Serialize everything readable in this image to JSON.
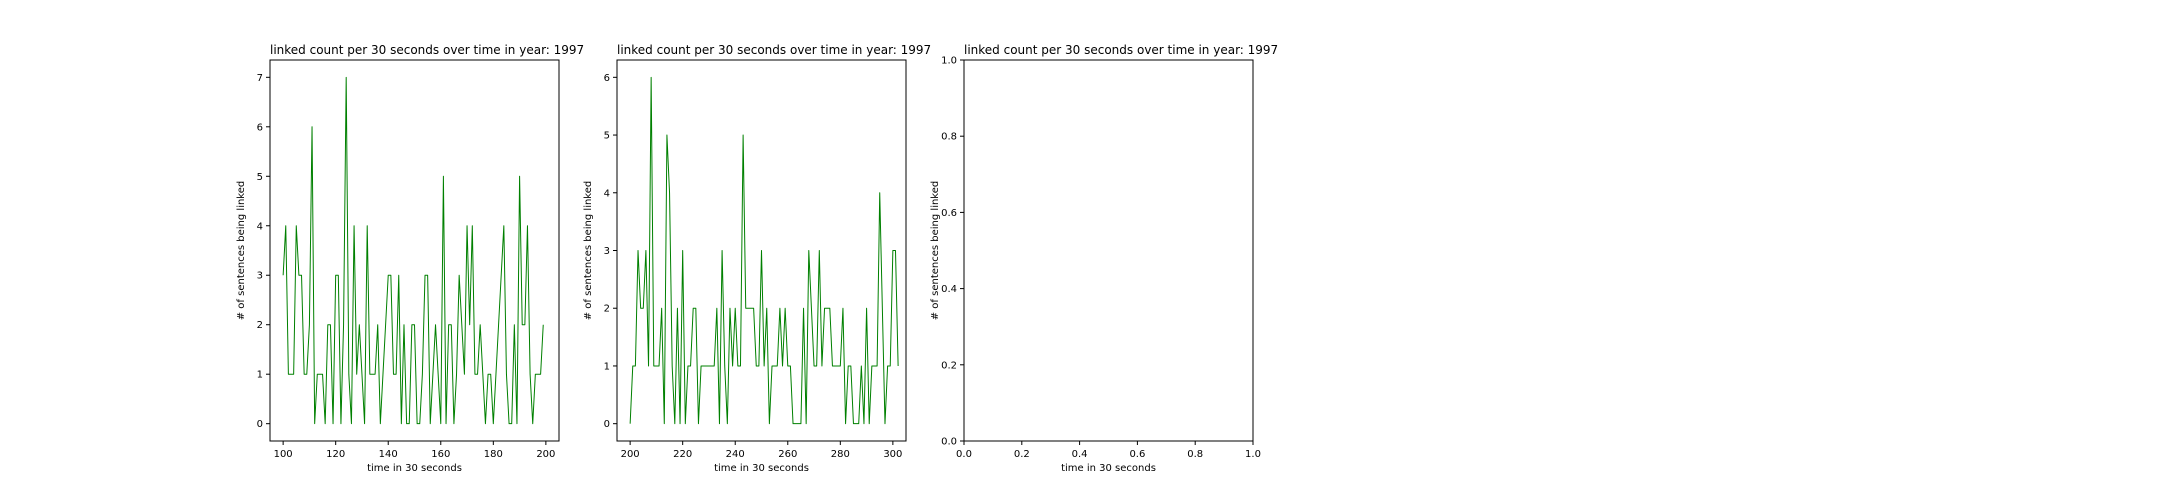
{
  "line_color": "#008000",
  "chart_data": [
    {
      "type": "line",
      "title": "linked count per 30 seconds over time in year: 1997",
      "xlabel": "time in 30 seconds",
      "ylabel": "# of sentences being linked",
      "xlim": [
        95,
        205
      ],
      "ylim": [
        -0.35,
        7.35
      ],
      "xticks": [
        100,
        120,
        140,
        160,
        180,
        200
      ],
      "yticks": [
        0,
        1,
        2,
        3,
        4,
        5,
        6,
        7
      ],
      "x_start": 100,
      "values": [
        3,
        4,
        1,
        1,
        1,
        4,
        3,
        3,
        1,
        1,
        2,
        6,
        0,
        1,
        1,
        1,
        0,
        2,
        2,
        0,
        3,
        3,
        0,
        2,
        7,
        1,
        0,
        4,
        1,
        2,
        1,
        0,
        4,
        1,
        1,
        1,
        2,
        0,
        1,
        2,
        3,
        3,
        1,
        1,
        3,
        0,
        2,
        0,
        0,
        2,
        2,
        0,
        0,
        1,
        3,
        3,
        0,
        1,
        2,
        1,
        0,
        5,
        0,
        2,
        2,
        0,
        1,
        3,
        2,
        1,
        4,
        2,
        4,
        1,
        1,
        2,
        1,
        0,
        1,
        1,
        0,
        1,
        2,
        3,
        4,
        1,
        0,
        0,
        2,
        0,
        5,
        2,
        2,
        4,
        1,
        0,
        1,
        1,
        1,
        2
      ]
    },
    {
      "type": "line",
      "title": "linked count per 30 seconds over time in year: 1997",
      "xlabel": "time in 30 seconds",
      "ylabel": "# of sentences being linked",
      "xlim": [
        195,
        305
      ],
      "ylim": [
        -0.3,
        6.3
      ],
      "xticks": [
        200,
        220,
        240,
        260,
        280,
        300
      ],
      "yticks": [
        0,
        1,
        2,
        3,
        4,
        5,
        6
      ],
      "x_start": 200,
      "values": [
        0,
        1,
        1,
        3,
        2,
        2,
        3,
        1,
        6,
        1,
        1,
        1,
        2,
        0,
        5,
        4,
        1,
        0,
        2,
        0,
        3,
        0,
        1,
        1,
        2,
        2,
        0,
        1,
        1,
        1,
        1,
        1,
        1,
        2,
        0,
        3,
        1,
        0,
        2,
        1,
        2,
        1,
        1,
        5,
        2,
        2,
        2,
        2,
        1,
        1,
        3,
        1,
        2,
        0,
        1,
        1,
        1,
        2,
        1,
        2,
        1,
        1,
        0,
        0,
        0,
        0,
        2,
        0,
        3,
        2,
        1,
        1,
        3,
        1,
        2,
        2,
        2,
        1,
        1,
        1,
        1,
        2,
        0,
        1,
        1,
        0,
        0,
        0,
        1,
        0,
        2,
        0,
        1,
        1,
        1,
        4,
        2,
        0,
        1,
        1,
        3,
        3,
        1
      ]
    },
    {
      "type": "line",
      "title": "linked count per 30 seconds over time in year: 1997",
      "xlabel": "time in 30 seconds",
      "ylabel": "# of sentences being linked",
      "xlim": [
        0,
        1
      ],
      "ylim": [
        0,
        1
      ],
      "xticks": [
        0.0,
        0.2,
        0.4,
        0.6,
        0.8,
        1.0
      ],
      "yticks": [
        0.0,
        0.2,
        0.4,
        0.6,
        0.8,
        1.0
      ],
      "tick_format": "0.0",
      "x_start": 0,
      "values": []
    }
  ]
}
